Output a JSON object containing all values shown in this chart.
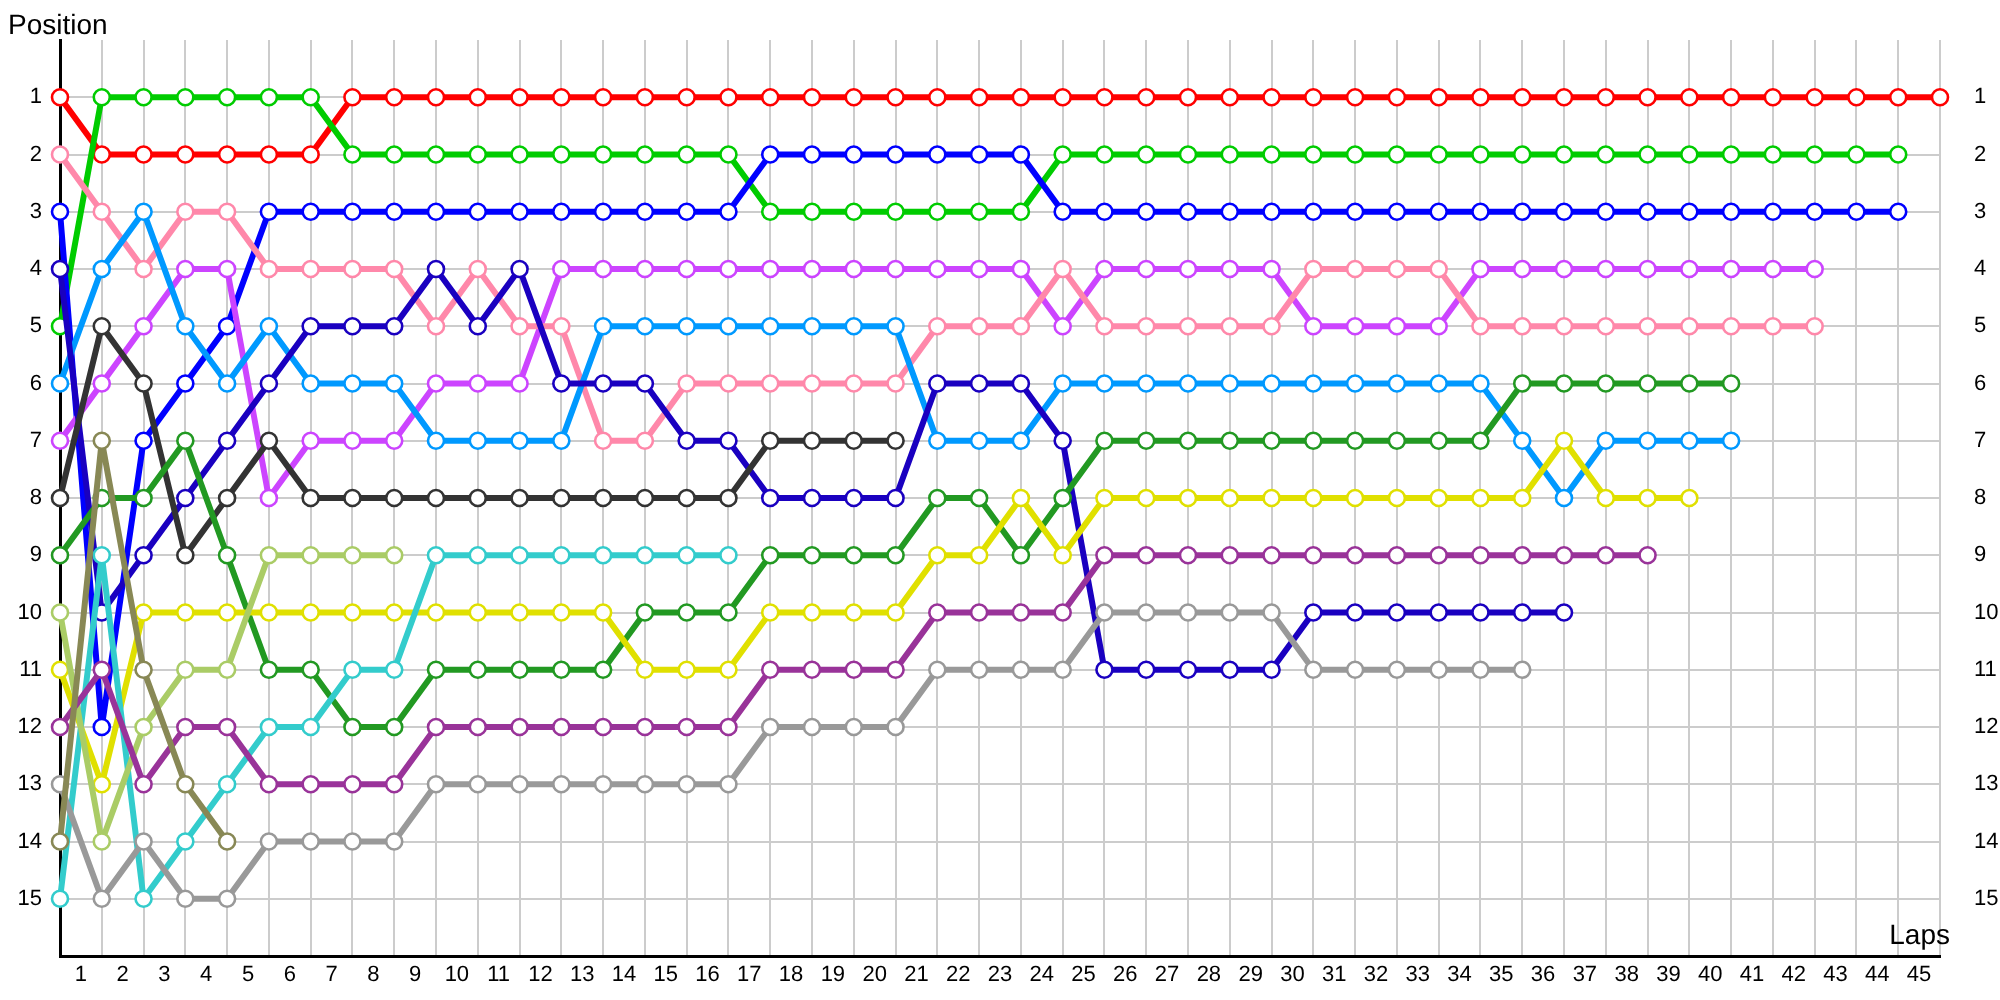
{
  "chart_data": {
    "type": "line",
    "xlabel": "Laps",
    "ylabel": "Position",
    "x": [
      0,
      1,
      2,
      3,
      4,
      5,
      6,
      7,
      8,
      9,
      10,
      11,
      12,
      13,
      14,
      15,
      16,
      17,
      18,
      19,
      20,
      21,
      22,
      23,
      24,
      25,
      26,
      27,
      28,
      29,
      30,
      31,
      32,
      33,
      34,
      35,
      36,
      37,
      38,
      39,
      40,
      41,
      42,
      43,
      44,
      45
    ],
    "xlim": [
      0,
      45
    ],
    "xticks": [
      {
        "value": 0,
        "label": null
      },
      {
        "value": 1,
        "label": null
      },
      {
        "value": 2,
        "label": null
      },
      {
        "value": 3,
        "label": null
      },
      {
        "value": 4,
        "label": null
      },
      {
        "value": 5,
        "label": null
      },
      {
        "value": 6,
        "label": null
      },
      {
        "value": 7,
        "label": null
      },
      {
        "value": 8,
        "label": null
      },
      {
        "value": 9,
        "label": null
      },
      {
        "value": 10,
        "label": null
      },
      {
        "value": 11,
        "label": null
      },
      {
        "value": 12,
        "label": null
      },
      {
        "value": 13,
        "label": null
      },
      {
        "value": 14,
        "label": null
      },
      {
        "value": 15,
        "label": null
      },
      {
        "value": 16,
        "label": null
      },
      {
        "value": 17,
        "label": null
      },
      {
        "value": 18,
        "label": null
      },
      {
        "value": 19,
        "label": null
      },
      {
        "value": 20,
        "label": null
      },
      {
        "value": 21,
        "label": null
      },
      {
        "value": 22,
        "label": null
      },
      {
        "value": 23,
        "label": null
      },
      {
        "value": 24,
        "label": null
      },
      {
        "value": 25,
        "label": null
      },
      {
        "value": 26,
        "label": null
      },
      {
        "value": 27,
        "label": null
      },
      {
        "value": 28,
        "label": null
      },
      {
        "value": 29,
        "label": null
      },
      {
        "value": 30,
        "label": null
      },
      {
        "value": 31,
        "label": null
      },
      {
        "value": 32,
        "label": null
      },
      {
        "value": 33,
        "label": null
      },
      {
        "value": 34,
        "label": null
      },
      {
        "value": 35,
        "label": null
      },
      {
        "value": 36,
        "label": null
      },
      {
        "value": 37,
        "label": null
      },
      {
        "value": 38,
        "label": null
      },
      {
        "value": 39,
        "label": null
      },
      {
        "value": 40,
        "label": null
      },
      {
        "value": 41,
        "label": null
      },
      {
        "value": 42,
        "label": null
      },
      {
        "value": 43,
        "label": null
      },
      {
        "value": 44,
        "label": null
      },
      {
        "value": 45,
        "label": null
      },
      {
        "value": 0.5,
        "label": "1"
      },
      {
        "value": 1.5,
        "label": "2"
      },
      {
        "value": 2.5,
        "label": "3"
      },
      {
        "value": 3.5,
        "label": "4"
      },
      {
        "value": 4.5,
        "label": "5"
      },
      {
        "value": 5.5,
        "label": "6"
      },
      {
        "value": 6.5,
        "label": "7"
      },
      {
        "value": 7.5,
        "label": "8"
      },
      {
        "value": 8.5,
        "label": "9"
      },
      {
        "value": 9.5,
        "label": "10"
      },
      {
        "value": 10.5,
        "label": "11"
      },
      {
        "value": 11.5,
        "label": "12"
      },
      {
        "value": 12.5,
        "label": "13"
      },
      {
        "value": 13.5,
        "label": "14"
      },
      {
        "value": 14.5,
        "label": "15"
      },
      {
        "value": 15.5,
        "label": "16"
      },
      {
        "value": 16.5,
        "label": "17"
      },
      {
        "value": 17.5,
        "label": "18"
      },
      {
        "value": 18.5,
        "label": "19"
      },
      {
        "value": 19.5,
        "label": "20"
      },
      {
        "value": 20.5,
        "label": "21"
      },
      {
        "value": 21.5,
        "label": "22"
      },
      {
        "value": 22.5,
        "label": "23"
      },
      {
        "value": 23.5,
        "label": "24"
      },
      {
        "value": 24.5,
        "label": "25"
      },
      {
        "value": 25.5,
        "label": "26"
      },
      {
        "value": 26.5,
        "label": "27"
      },
      {
        "value": 27.5,
        "label": "28"
      },
      {
        "value": 28.5,
        "label": "29"
      },
      {
        "value": 29.5,
        "label": "30"
      },
      {
        "value": 30.5,
        "label": "31"
      },
      {
        "value": 31.5,
        "label": "32"
      },
      {
        "value": 32.5,
        "label": "33"
      },
      {
        "value": 33.5,
        "label": "34"
      },
      {
        "value": 34.5,
        "label": "35"
      },
      {
        "value": 35.5,
        "label": "36"
      },
      {
        "value": 36.5,
        "label": "37"
      },
      {
        "value": 37.5,
        "label": "38"
      },
      {
        "value": 38.5,
        "label": "39"
      },
      {
        "value": 39.5,
        "label": "40"
      },
      {
        "value": 40.5,
        "label": "41"
      },
      {
        "value": 41.5,
        "label": "42"
      },
      {
        "value": 42.5,
        "label": "43"
      },
      {
        "value": 43.5,
        "label": "44"
      },
      {
        "value": 44.5,
        "label": "45"
      }
    ],
    "ylim": [
      16,
      0
    ],
    "yticks": [
      1,
      2,
      3,
      4,
      5,
      6,
      7,
      8,
      9,
      10,
      11,
      12,
      13,
      14,
      15
    ],
    "y2lim": [
      16,
      0
    ],
    "y2ticks": [
      1,
      2,
      3,
      4,
      5,
      6,
      7,
      8,
      9,
      10,
      11,
      12,
      13,
      14,
      15
    ],
    "grid": true,
    "legend": false,
    "marker": "circle",
    "line_style": "solid",
    "series": [
      {
        "color": "#ff0000",
        "values": [
          1,
          2,
          2,
          2,
          2,
          2,
          2,
          1,
          1,
          1,
          1,
          1,
          1,
          1,
          1,
          1,
          1,
          1,
          1,
          1,
          1,
          1,
          1,
          1,
          1,
          1,
          1,
          1,
          1,
          1,
          1,
          1,
          1,
          1,
          1,
          1,
          1,
          1,
          1,
          1,
          1,
          1,
          1,
          1,
          1,
          1
        ]
      },
      {
        "color": "#00cc00",
        "values": [
          5,
          1,
          1,
          1,
          1,
          1,
          1,
          2,
          2,
          2,
          2,
          2,
          2,
          2,
          2,
          2,
          2,
          3,
          3,
          3,
          3,
          3,
          3,
          3,
          2,
          2,
          2,
          2,
          2,
          2,
          2,
          2,
          2,
          2,
          2,
          2,
          2,
          2,
          2,
          2,
          2,
          2,
          2,
          2,
          2,
          null
        ]
      },
      {
        "color": "#0000ff",
        "values": [
          3,
          12,
          7,
          6,
          5,
          3,
          3,
          3,
          3,
          3,
          3,
          3,
          3,
          3,
          3,
          3,
          3,
          2,
          2,
          2,
          2,
          2,
          2,
          2,
          3,
          3,
          3,
          3,
          3,
          3,
          3,
          3,
          3,
          3,
          3,
          3,
          3,
          3,
          3,
          3,
          3,
          3,
          3,
          3,
          3,
          null
        ]
      },
      {
        "color": "#cc44ff",
        "values": [
          7,
          6,
          5,
          4,
          4,
          8,
          7,
          7,
          7,
          6,
          6,
          6,
          4,
          4,
          4,
          4,
          4,
          4,
          4,
          4,
          4,
          4,
          4,
          4,
          5,
          4,
          4,
          4,
          4,
          4,
          5,
          5,
          5,
          5,
          4,
          4,
          4,
          4,
          4,
          4,
          4,
          4,
          4,
          null,
          null,
          null
        ]
      },
      {
        "color": "#ff88aa",
        "values": [
          2,
          3,
          4,
          3,
          3,
          4,
          4,
          4,
          4,
          5,
          4,
          5,
          5,
          7,
          7,
          6,
          6,
          6,
          6,
          6,
          6,
          5,
          5,
          5,
          4,
          5,
          5,
          5,
          5,
          5,
          4,
          4,
          4,
          4,
          5,
          5,
          5,
          5,
          5,
          5,
          5,
          5,
          5,
          null,
          null,
          null
        ]
      },
      {
        "color": "#0099ff",
        "values": [
          6,
          4,
          3,
          5,
          6,
          5,
          6,
          6,
          6,
          7,
          7,
          7,
          7,
          5,
          5,
          5,
          5,
          5,
          5,
          5,
          5,
          7,
          7,
          7,
          6,
          6,
          6,
          6,
          6,
          6,
          6,
          6,
          6,
          6,
          6,
          7,
          8,
          7,
          7,
          7,
          7,
          null,
          null,
          null,
          null,
          null
        ]
      },
      {
        "color": "#1a00c0",
        "values": [
          4,
          10,
          9,
          8,
          7,
          6,
          5,
          5,
          5,
          4,
          5,
          4,
          6,
          6,
          6,
          7,
          7,
          8,
          8,
          8,
          8,
          6,
          6,
          6,
          7,
          11,
          11,
          11,
          11,
          11,
          10,
          10,
          10,
          10,
          10,
          10,
          10,
          null,
          null,
          null,
          null,
          null,
          null,
          null,
          null,
          null
        ]
      },
      {
        "color": "#333333",
        "values": [
          8,
          5,
          6,
          9,
          8,
          7,
          8,
          8,
          8,
          8,
          8,
          8,
          8,
          8,
          8,
          8,
          8,
          7,
          7,
          7,
          7,
          null,
          null,
          null,
          null,
          null,
          null,
          null,
          null,
          null,
          null,
          null,
          null,
          null,
          null,
          null,
          null,
          null,
          null,
          null,
          null,
          null,
          null,
          null,
          null,
          null
        ]
      },
      {
        "color": "#229922",
        "values": [
          9,
          8,
          8,
          7,
          9,
          11,
          11,
          12,
          12,
          11,
          11,
          11,
          11,
          11,
          10,
          10,
          10,
          9,
          9,
          9,
          9,
          8,
          8,
          9,
          8,
          7,
          7,
          7,
          7,
          7,
          7,
          7,
          7,
          7,
          7,
          6,
          6,
          6,
          6,
          6,
          6,
          null,
          null,
          null,
          null,
          null
        ]
      },
      {
        "color": "#e0e000",
        "values": [
          11,
          13,
          10,
          10,
          10,
          10,
          10,
          10,
          10,
          10,
          10,
          10,
          10,
          10,
          11,
          11,
          11,
          10,
          10,
          10,
          10,
          9,
          9,
          8,
          9,
          8,
          8,
          8,
          8,
          8,
          8,
          8,
          8,
          8,
          8,
          8,
          7,
          8,
          8,
          8,
          null,
          null,
          null,
          null,
          null,
          null
        ]
      },
      {
        "color": "#33cccc",
        "values": [
          15,
          9,
          15,
          14,
          13,
          12,
          12,
          11,
          11,
          9,
          9,
          9,
          9,
          9,
          9,
          9,
          9,
          null,
          null,
          null,
          null,
          null,
          null,
          null,
          null,
          null,
          null,
          null,
          null,
          null,
          null,
          null,
          null,
          null,
          null,
          null,
          null,
          null,
          null,
          null,
          null,
          null,
          null,
          null,
          null,
          null
        ]
      },
      {
        "color": "#aacc66",
        "values": [
          10,
          14,
          12,
          11,
          11,
          9,
          9,
          9,
          9,
          null,
          null,
          null,
          null,
          null,
          null,
          null,
          null,
          null,
          null,
          null,
          null,
          null,
          null,
          null,
          null,
          null,
          null,
          null,
          null,
          null,
          null,
          null,
          null,
          null,
          null,
          null,
          null,
          null,
          null,
          null,
          null,
          null,
          null,
          null,
          null,
          null
        ]
      },
      {
        "color": "#993399",
        "values": [
          12,
          11,
          13,
          12,
          12,
          13,
          13,
          13,
          13,
          12,
          12,
          12,
          12,
          12,
          12,
          12,
          12,
          11,
          11,
          11,
          11,
          10,
          10,
          10,
          10,
          9,
          9,
          9,
          9,
          9,
          9,
          9,
          9,
          9,
          9,
          9,
          9,
          9,
          9,
          null,
          null,
          null,
          null,
          null,
          null,
          null
        ]
      },
      {
        "color": "#999999",
        "values": [
          13,
          15,
          14,
          15,
          15,
          14,
          14,
          14,
          14,
          13,
          13,
          13,
          13,
          13,
          13,
          13,
          13,
          12,
          12,
          12,
          12,
          11,
          11,
          11,
          11,
          10,
          10,
          10,
          10,
          10,
          11,
          11,
          11,
          11,
          11,
          11,
          null,
          null,
          null,
          null,
          null,
          null,
          null,
          null,
          null,
          null
        ]
      },
      {
        "color": "#888855",
        "values": [
          14,
          7,
          11,
          13,
          14,
          null,
          null,
          null,
          null,
          null,
          null,
          null,
          null,
          null,
          null,
          null,
          null,
          null,
          null,
          null,
          null,
          null,
          null,
          null,
          null,
          null,
          null,
          null,
          null,
          null,
          null,
          null,
          null,
          null,
          null,
          null,
          null,
          null,
          null,
          null,
          null,
          null,
          null,
          null,
          null,
          null
        ]
      }
    ]
  }
}
